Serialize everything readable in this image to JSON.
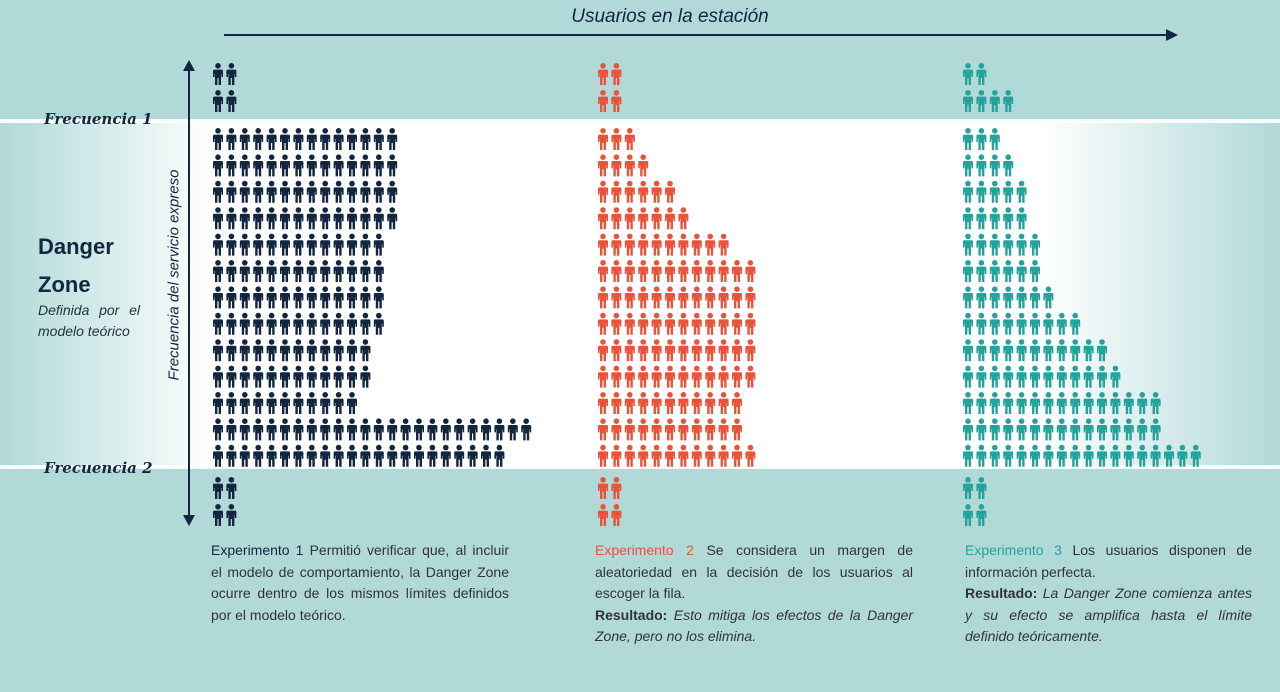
{
  "header": {
    "x_axis_title": "Usuarios en la estación"
  },
  "y_axis": {
    "title": "Frecuencia del servicio expreso"
  },
  "frequency_labels": {
    "f1": "Frecuencia 1",
    "f2": "Frecuencia 2"
  },
  "danger_zone": {
    "title_line1": "Danger",
    "title_line2": "Zone",
    "subtitle": "Definida por el modelo teórico"
  },
  "colors": {
    "navy": "#12263f",
    "orange": "#e8533a",
    "teal": "#24a39c"
  },
  "experiments": [
    {
      "name": "Experimento 1",
      "color": "#12263f",
      "description": "Permitió verificar que, al incluir el modelo de comportamiento, la Danger Zone ocurre dentro de los mismos límites definidos por el modelo teórico.",
      "result_label": "",
      "result_text": "",
      "top_rows": [
        2,
        2
      ],
      "band_rows": [
        14,
        14,
        14,
        14,
        13,
        13,
        13,
        13,
        12,
        12,
        11,
        24,
        22
      ],
      "bottom_rows": [
        2,
        2
      ]
    },
    {
      "name": "Experimento 2",
      "color": "#e8533a",
      "description": "Se considera un margen de aleatoriedad en la decisión de los usuarios al escoger la fila.",
      "result_label": "Resultado:",
      "result_text": "Esto mitiga los efectos de la Danger Zone, pero no los elimina.",
      "top_rows": [
        2,
        2
      ],
      "band_rows": [
        3,
        4,
        6,
        7,
        10,
        12,
        12,
        12,
        12,
        12,
        11,
        11,
        12
      ],
      "bottom_rows": [
        2,
        2
      ]
    },
    {
      "name": "Experimento 3",
      "color": "#24a39c",
      "description": "Los usuarios disponen de información perfecta.",
      "result_label": "Resultado:",
      "result_text": "La Danger Zone comienza antes y su efecto se amplifica hasta el límite definido teóricamente.",
      "top_rows": [
        2,
        4
      ],
      "band_rows": [
        3,
        4,
        5,
        5,
        6,
        6,
        7,
        9,
        11,
        12,
        15,
        15,
        18
      ],
      "bottom_rows": [
        2,
        2
      ]
    }
  ]
}
